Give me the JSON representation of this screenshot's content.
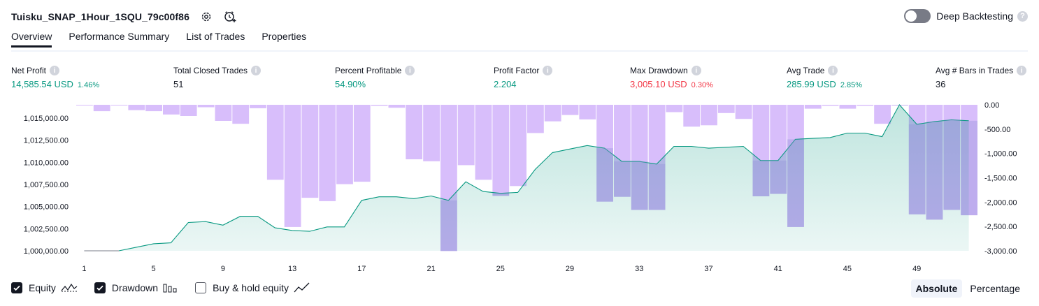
{
  "header": {
    "strategy_name": "Tuisku_SNAP_1Hour_1SQU_79c00f86",
    "settings_icon": "gear-icon",
    "alert_icon": "add-alert-icon"
  },
  "deep_backtesting": {
    "label": "Deep Backtesting",
    "enabled": false
  },
  "tabs": [
    {
      "label": "Overview",
      "active": true
    },
    {
      "label": "Performance Summary",
      "active": false
    },
    {
      "label": "List of Trades",
      "active": false
    },
    {
      "label": "Properties",
      "active": false
    }
  ],
  "metrics": [
    {
      "label": "Net Profit",
      "value": "14,585.54 USD",
      "pct": "1.46%",
      "color": "#089981"
    },
    {
      "label": "Total Closed Trades",
      "value": "51",
      "pct": "",
      "color": "#131722"
    },
    {
      "label": "Percent Profitable",
      "value": "54.90%",
      "pct": "",
      "color": "#089981"
    },
    {
      "label": "Profit Factor",
      "value": "2.204",
      "pct": "",
      "color": "#089981"
    },
    {
      "label": "Max Drawdown",
      "value": "3,005.10 USD",
      "pct": "0.30%",
      "color": "#f23645"
    },
    {
      "label": "Avg Trade",
      "value": "285.99 USD",
      "pct": "2.85%",
      "color": "#089981"
    },
    {
      "label": "Avg # Bars in Trades",
      "value": "36",
      "pct": "",
      "color": "#131722"
    }
  ],
  "chart_data": {
    "type": "line",
    "x_ticks": [
      "1",
      "5",
      "9",
      "13",
      "17",
      "21",
      "25",
      "29",
      "33",
      "37",
      "41",
      "45",
      "49"
    ],
    "left_axis": {
      "ticks": [
        "1,015,000.00",
        "1,012,500.00",
        "1,010,000.00",
        "1,007,500.00",
        "1,005,000.00",
        "1,002,500.00",
        "1,000,000.00"
      ],
      "ylim": [
        1000000,
        1016500
      ]
    },
    "right_axis": {
      "ticks": [
        "0.00",
        "-500.00",
        "-1,000.00",
        "-1,500.00",
        "-2,000.00",
        "-2,500.00",
        "-3,000.00"
      ],
      "ylim": [
        -3000,
        0
      ]
    },
    "series": [
      {
        "name": "Equity",
        "color": "#089981",
        "x": [
          1,
          2,
          3,
          4,
          5,
          6,
          7,
          8,
          9,
          10,
          11,
          12,
          13,
          14,
          15,
          16,
          17,
          18,
          19,
          20,
          21,
          22,
          23,
          24,
          25,
          26,
          27,
          28,
          29,
          30,
          31,
          32,
          33,
          34,
          35,
          36,
          37,
          38,
          39,
          40,
          41,
          42,
          43,
          44,
          45,
          46,
          47,
          48,
          49,
          50,
          51,
          52
        ],
        "values": [
          1000000,
          1000000,
          1000000,
          1000400,
          1000800,
          1000900,
          1003200,
          1003300,
          1002900,
          1003900,
          1003900,
          1002600,
          1002300,
          1002200,
          1002700,
          1002700,
          1005700,
          1006100,
          1006100,
          1005900,
          1006200,
          1005700,
          1007800,
          1006700,
          1006500,
          1006600,
          1009200,
          1011100,
          1011500,
          1011900,
          1011600,
          1010100,
          1010100,
          1009800,
          1011800,
          1011800,
          1011600,
          1011700,
          1011800,
          1010200,
          1010200,
          1012600,
          1012700,
          1012800,
          1013300,
          1013300,
          1012900,
          1016500,
          1014300,
          1014600,
          1014800,
          1014700
        ]
      },
      {
        "name": "Drawdown",
        "color": "#b388ff",
        "x": [
          1,
          2,
          3,
          4,
          5,
          6,
          7,
          8,
          9,
          10,
          11,
          12,
          13,
          14,
          15,
          16,
          17,
          18,
          19,
          20,
          21,
          22,
          23,
          24,
          25,
          26,
          27,
          28,
          29,
          30,
          31,
          32,
          33,
          34,
          35,
          36,
          37,
          38,
          39,
          40,
          41,
          42,
          43,
          44,
          45,
          46,
          47,
          48,
          49,
          50,
          51,
          52
        ],
        "values": [
          -10,
          -130,
          -10,
          -110,
          -130,
          -200,
          -230,
          -50,
          -330,
          -390,
          -70,
          -1540,
          -2510,
          -1910,
          -1980,
          -1630,
          -1580,
          -20,
          -60,
          -1120,
          -1160,
          -3005,
          -1240,
          -1540,
          -1870,
          -1670,
          -580,
          -340,
          -210,
          -300,
          -1990,
          -1890,
          -2160,
          -2160,
          -150,
          -450,
          -420,
          -170,
          -290,
          -1880,
          -1830,
          -2510,
          -80,
          -20,
          -80,
          -20,
          -390,
          -10,
          -2250,
          -2360,
          -2160,
          -2270
        ]
      }
    ]
  },
  "legend": [
    {
      "label": "Equity",
      "checked": true,
      "icon": "equity-line-icon"
    },
    {
      "label": "Drawdown",
      "checked": true,
      "icon": "drawdown-bars-icon"
    },
    {
      "label": "Buy & hold equity",
      "checked": false,
      "icon": "buy-hold-line-icon"
    }
  ],
  "mode_buttons": [
    {
      "label": "Absolute",
      "active": true
    },
    {
      "label": "Percentage",
      "active": false
    }
  ]
}
